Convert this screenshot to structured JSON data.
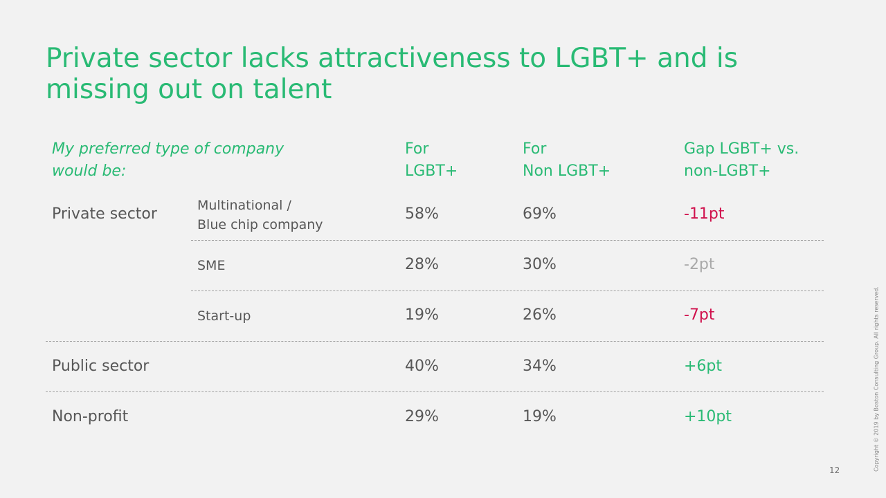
{
  "title": "Private sector lacks attractiveness to LGBT+ and is missing out on talent",
  "header": {
    "question_line1": "My preferred type of company",
    "question_line2": "would be:",
    "col_lgbt_line1": "For",
    "col_lgbt_line2": "LGBT+",
    "col_non_line1": "For",
    "col_non_line2": "Non LGBT+",
    "col_gap_line1": "Gap LGBT+ vs.",
    "col_gap_line2": "non-LGBT+"
  },
  "rows": [
    {
      "group": "Private sector",
      "sub_line1": "Multinational /",
      "sub_line2": "Blue chip company",
      "lgbt": "58%",
      "non": "69%",
      "gap": "-11pt",
      "gap_tone": "negative"
    },
    {
      "group": "",
      "sub_line1": "SME",
      "sub_line2": "",
      "lgbt": "28%",
      "non": "30%",
      "gap": "-2pt",
      "gap_tone": "neutral"
    },
    {
      "group": "",
      "sub_line1": "Start-up",
      "sub_line2": "",
      "lgbt": "19%",
      "non": "26%",
      "gap": "-7pt",
      "gap_tone": "negative"
    },
    {
      "group": "Public sector",
      "sub_line1": "",
      "sub_line2": "",
      "lgbt": "40%",
      "non": "34%",
      "gap": "+6pt",
      "gap_tone": "positive"
    },
    {
      "group": "Non-profit",
      "sub_line1": "",
      "sub_line2": "",
      "lgbt": "29%",
      "non": "19%",
      "gap": "+10pt",
      "gap_tone": "positive"
    }
  ],
  "colors": {
    "accent_green": "#29ba74",
    "negative_red": "#d0104c",
    "neutral_gray": "#a8a8a8",
    "text_gray": "#575757"
  },
  "footer": {
    "page_number": "12",
    "copyright": "Copyright © 2019 by Boston Consulting Group. All rights reserved."
  }
}
